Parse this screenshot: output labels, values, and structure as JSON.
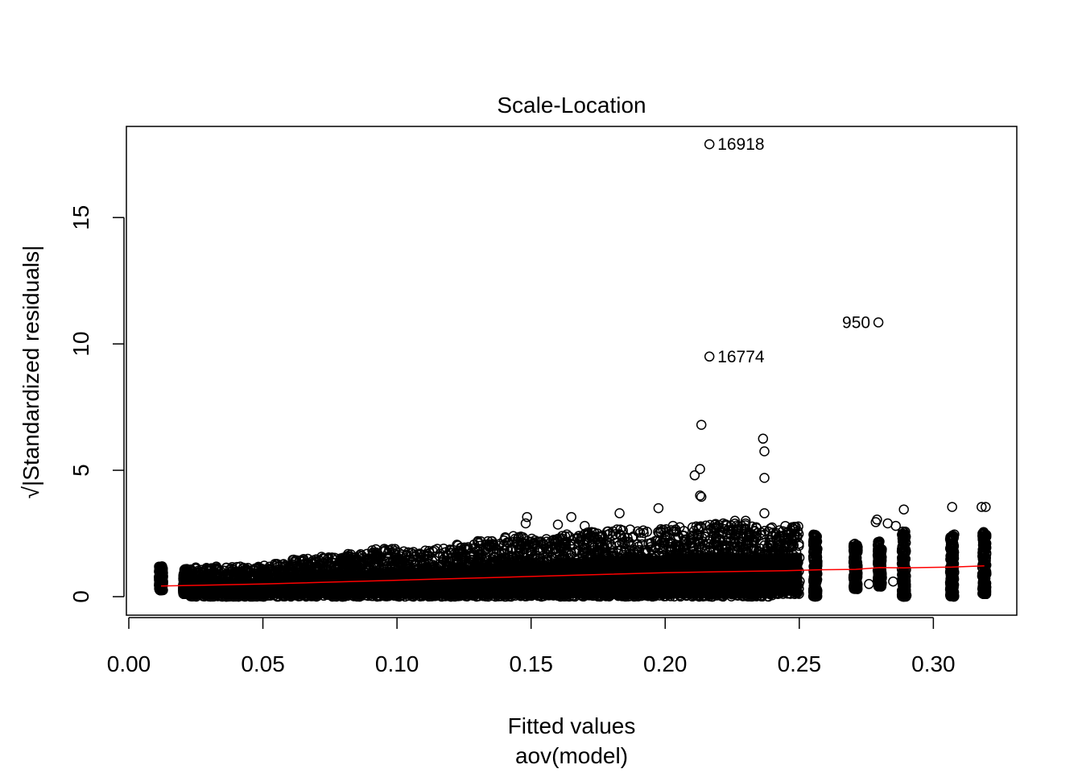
{
  "chart_data": {
    "type": "scatter",
    "title": "Scale-Location",
    "xlabel": "Fitted values",
    "xlabel_sub": "aov(model)",
    "ylabel_radical": "√",
    "ylabel": "|Standardized residuals|",
    "xlim": [
      0.0,
      0.32
    ],
    "ylim": [
      0,
      18
    ],
    "x_ticks": [
      0.0,
      0.05,
      0.1,
      0.15,
      0.2,
      0.25,
      0.3
    ],
    "x_tick_labels": [
      "0.00",
      "0.05",
      "0.10",
      "0.15",
      "0.20",
      "0.25",
      "0.30"
    ],
    "y_ticks": [
      0,
      5,
      10,
      15
    ],
    "y_tick_labels": [
      "0",
      "5",
      "10",
      "15"
    ],
    "grid": false,
    "point_style": "open-circle",
    "point_color": "#000000",
    "trend_color": "#ff0000",
    "bulk_columns": [
      {
        "x": 0.012,
        "ymin": 0.25,
        "ymax": 1.2
      },
      {
        "x": 0.021,
        "ymin": 0.1,
        "ymax": 1.1
      },
      {
        "x": 0.028,
        "ymin": 0.0,
        "ymax": 1.2
      },
      {
        "x": 0.035,
        "ymin": 0.0,
        "ymax": 1.2
      },
      {
        "x": 0.045,
        "ymin": 0.0,
        "ymax": 1.2
      },
      {
        "x": 0.055,
        "ymin": 0.0,
        "ymax": 1.3
      },
      {
        "x": 0.065,
        "ymin": 0.0,
        "ymax": 1.5
      },
      {
        "x": 0.075,
        "ymin": 0.0,
        "ymax": 1.6
      },
      {
        "x": 0.085,
        "ymin": 0.0,
        "ymax": 1.7
      },
      {
        "x": 0.095,
        "ymin": 0.0,
        "ymax": 1.9
      },
      {
        "x": 0.105,
        "ymin": 0.0,
        "ymax": 1.8
      },
      {
        "x": 0.115,
        "ymin": 0.0,
        "ymax": 1.9
      },
      {
        "x": 0.125,
        "ymin": 0.0,
        "ymax": 2.1
      },
      {
        "x": 0.135,
        "ymin": 0.0,
        "ymax": 2.2
      },
      {
        "x": 0.145,
        "ymin": 0.0,
        "ymax": 2.4
      },
      {
        "x": 0.155,
        "ymin": 0.0,
        "ymax": 2.3
      },
      {
        "x": 0.165,
        "ymin": 0.0,
        "ymax": 2.5
      },
      {
        "x": 0.175,
        "ymin": 0.0,
        "ymax": 2.6
      },
      {
        "x": 0.185,
        "ymin": 0.0,
        "ymax": 2.7
      },
      {
        "x": 0.195,
        "ymin": 0.0,
        "ymax": 2.7
      },
      {
        "x": 0.205,
        "ymin": 0.0,
        "ymax": 2.8
      },
      {
        "x": 0.215,
        "ymin": 0.0,
        "ymax": 2.9
      },
      {
        "x": 0.225,
        "ymin": 0.0,
        "ymax": 2.9
      },
      {
        "x": 0.235,
        "ymin": 0.0,
        "ymax": 2.8
      },
      {
        "x": 0.245,
        "ymin": 0.1,
        "ymax": 2.8
      },
      {
        "x": 0.256,
        "ymin": 0.0,
        "ymax": 2.5
      },
      {
        "x": 0.271,
        "ymin": 0.3,
        "ymax": 2.2
      },
      {
        "x": 0.28,
        "ymin": 0.4,
        "ymax": 2.2
      },
      {
        "x": 0.289,
        "ymin": 0.0,
        "ymax": 2.6
      },
      {
        "x": 0.307,
        "ymin": 0.0,
        "ymax": 2.5
      },
      {
        "x": 0.319,
        "ymin": 0.1,
        "ymax": 2.6
      }
    ],
    "outliers": [
      {
        "x": 0.2165,
        "y": 17.9
      },
      {
        "x": 0.2795,
        "y": 10.85
      },
      {
        "x": 0.2165,
        "y": 9.5
      },
      {
        "x": 0.2135,
        "y": 6.8
      },
      {
        "x": 0.2365,
        "y": 6.25
      },
      {
        "x": 0.237,
        "y": 5.75
      },
      {
        "x": 0.213,
        "y": 5.05
      },
      {
        "x": 0.211,
        "y": 4.8
      },
      {
        "x": 0.237,
        "y": 4.7
      },
      {
        "x": 0.213,
        "y": 4.0
      },
      {
        "x": 0.2135,
        "y": 3.95
      },
      {
        "x": 0.1485,
        "y": 3.15
      },
      {
        "x": 0.165,
        "y": 3.15
      },
      {
        "x": 0.183,
        "y": 3.3
      },
      {
        "x": 0.1975,
        "y": 3.5
      },
      {
        "x": 0.289,
        "y": 3.45
      },
      {
        "x": 0.307,
        "y": 3.55
      },
      {
        "x": 0.318,
        "y": 3.55
      },
      {
        "x": 0.3195,
        "y": 3.55
      },
      {
        "x": 0.279,
        "y": 3.05
      },
      {
        "x": 0.2785,
        "y": 2.95
      },
      {
        "x": 0.226,
        "y": 3.0
      },
      {
        "x": 0.23,
        "y": 3.0
      },
      {
        "x": 0.237,
        "y": 3.3
      },
      {
        "x": 0.148,
        "y": 2.9
      },
      {
        "x": 0.16,
        "y": 2.85
      },
      {
        "x": 0.17,
        "y": 2.8
      },
      {
        "x": 0.29,
        "y": 0.05
      },
      {
        "x": 0.289,
        "y": 0.3
      },
      {
        "x": 0.276,
        "y": 0.5
      },
      {
        "x": 0.285,
        "y": 0.6
      },
      {
        "x": 0.283,
        "y": 2.9
      },
      {
        "x": 0.286,
        "y": 2.8
      }
    ],
    "labels": [
      {
        "text": "16918",
        "x": 0.2165,
        "y": 17.9,
        "side": "right"
      },
      {
        "text": "950",
        "x": 0.2795,
        "y": 10.85,
        "side": "left"
      },
      {
        "text": "16774",
        "x": 0.2165,
        "y": 9.5,
        "side": "right"
      }
    ],
    "trend": {
      "x": [
        0.012,
        0.05,
        0.1,
        0.15,
        0.2,
        0.245,
        0.256,
        0.271,
        0.28,
        0.289,
        0.307,
        0.319
      ],
      "y": [
        0.42,
        0.5,
        0.65,
        0.8,
        0.95,
        1.03,
        1.06,
        1.08,
        1.15,
        1.14,
        1.17,
        1.22
      ]
    }
  }
}
